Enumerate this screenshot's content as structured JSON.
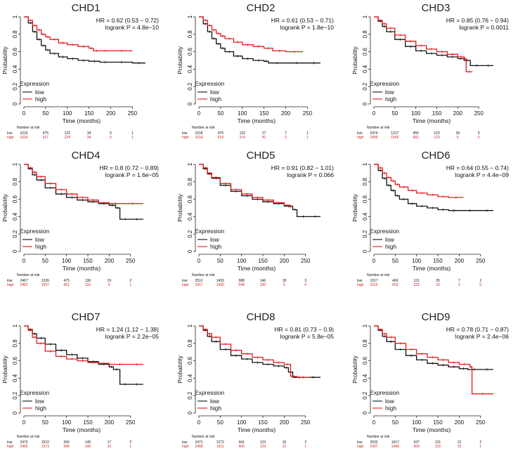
{
  "strings": {
    "xlabel": "Time (months)",
    "ylabel": "Probability",
    "legend_title": "Expression",
    "low": "low",
    "high": "high",
    "number_at_risk": "Number at risk"
  },
  "colors": {
    "low": "#111111",
    "high": "#e41a1c",
    "axis": "#222222"
  },
  "chart_data": [
    {
      "type": "line",
      "title": "CHD1",
      "hr": "HR = 0.62 (0.53 − 0.72)",
      "p": "logrank P = 4.8e−10",
      "xlabel": "Time (months)",
      "ylabel": "Probability",
      "xlim": [
        0,
        285
      ],
      "ylim": [
        0,
        1
      ],
      "xticks": [
        0,
        50,
        100,
        150,
        200,
        250
      ],
      "yticks": [
        0,
        0.2,
        0.4,
        0.6,
        0.8,
        1
      ],
      "risk_times": [
        0,
        50,
        100,
        150,
        200,
        250
      ],
      "risk_low": [
        "1016",
        "475",
        "122",
        "34",
        "5",
        "1"
      ],
      "risk_high": [
        "1016",
        "617",
        "224",
        "34",
        "5",
        "1"
      ],
      "series": [
        {
          "name": "low",
          "x": [
            0,
            10,
            20,
            30,
            40,
            50,
            60,
            80,
            100,
            125,
            150,
            175,
            200,
            250,
            280
          ],
          "y": [
            1,
            0.93,
            0.83,
            0.74,
            0.67,
            0.62,
            0.58,
            0.54,
            0.52,
            0.5,
            0.49,
            0.48,
            0.48,
            0.47,
            0.47
          ]
        },
        {
          "name": "high",
          "x": [
            0,
            10,
            20,
            30,
            40,
            50,
            60,
            80,
            100,
            125,
            150,
            160,
            175,
            200,
            250
          ],
          "y": [
            1,
            0.96,
            0.9,
            0.85,
            0.8,
            0.77,
            0.74,
            0.7,
            0.68,
            0.66,
            0.64,
            0.61,
            0.61,
            0.61,
            0.61
          ]
        }
      ]
    },
    {
      "type": "line",
      "title": "CHD2",
      "hr": "HR = 0.61 (0.53 − 0.71)",
      "p": "logrank P = 1.8e−10",
      "xlabel": "Time (months)",
      "ylabel": "Probability",
      "xlim": [
        0,
        285
      ],
      "ylim": [
        0,
        1
      ],
      "xticks": [
        0,
        50,
        100,
        150,
        200,
        250
      ],
      "yticks": [
        0,
        0.2,
        0.4,
        0.6,
        0.8,
        1
      ],
      "risk_times": [
        0,
        50,
        100,
        150,
        200,
        250
      ],
      "risk_low": [
        "1018",
        "476",
        "132",
        "27",
        "7",
        "1"
      ],
      "risk_high": [
        "1014",
        "614",
        "214",
        "41",
        "3",
        "1"
      ],
      "series": [
        {
          "name": "low",
          "x": [
            0,
            10,
            20,
            30,
            40,
            50,
            60,
            80,
            100,
            125,
            150,
            160,
            200,
            250,
            280
          ],
          "y": [
            1,
            0.92,
            0.83,
            0.75,
            0.69,
            0.64,
            0.6,
            0.55,
            0.52,
            0.5,
            0.49,
            0.47,
            0.47,
            0.47,
            0.47
          ]
        },
        {
          "name": "high",
          "x": [
            0,
            10,
            20,
            30,
            40,
            50,
            60,
            80,
            100,
            125,
            150,
            170,
            200,
            240
          ],
          "y": [
            1,
            0.96,
            0.9,
            0.85,
            0.81,
            0.78,
            0.75,
            0.71,
            0.68,
            0.66,
            0.64,
            0.61,
            0.6,
            0.6
          ]
        }
      ]
    },
    {
      "type": "line",
      "title": "CHD3",
      "hr": "HR = 0.85 (0.76 − 0.94)",
      "p": "logrank P = 0.0011",
      "xlabel": "Time (months)",
      "ylabel": "Probability",
      "xlim": [
        0,
        295
      ],
      "ylim": [
        0,
        1
      ],
      "xticks": [
        0,
        50,
        100,
        150,
        200,
        250
      ],
      "yticks": [
        0,
        0.2,
        0.4,
        0.6,
        0.8,
        1
      ],
      "risk_times": [
        0,
        50,
        100,
        150,
        200,
        250
      ],
      "risk_low": [
        "2474",
        "1317",
        "455",
        "123",
        "18",
        "3"
      ],
      "risk_high": [
        "2456",
        "1566",
        "681",
        "123",
        "6",
        "0"
      ],
      "series": [
        {
          "name": "low",
          "x": [
            0,
            10,
            20,
            30,
            50,
            75,
            100,
            125,
            150,
            175,
            200,
            215,
            230,
            260,
            285
          ],
          "y": [
            1,
            0.95,
            0.89,
            0.83,
            0.74,
            0.66,
            0.61,
            0.58,
            0.56,
            0.54,
            0.52,
            0.5,
            0.44,
            0.44,
            0.44
          ]
        },
        {
          "name": "high",
          "x": [
            0,
            10,
            20,
            30,
            50,
            75,
            100,
            125,
            150,
            175,
            200,
            215,
            220,
            235
          ],
          "y": [
            1,
            0.96,
            0.92,
            0.87,
            0.79,
            0.72,
            0.67,
            0.63,
            0.6,
            0.57,
            0.54,
            0.52,
            0.37,
            0.37
          ]
        }
      ]
    },
    {
      "type": "line",
      "title": "CHD4",
      "hr": "HR = 0.8 (0.72 − 0.89)",
      "p": "logrank P = 1.6e−05",
      "xlabel": "Time (months)",
      "ylabel": "Probability",
      "xlim": [
        0,
        290
      ],
      "ylim": [
        0,
        1
      ],
      "xticks": [
        0,
        50,
        100,
        150,
        200,
        250
      ],
      "yticks": [
        0,
        0.2,
        0.4,
        0.6,
        0.8,
        1
      ],
      "risk_times": [
        0,
        50,
        100,
        150,
        200,
        250
      ],
      "risk_low": [
        "2467",
        "1326",
        "475",
        "130",
        "19",
        "2"
      ],
      "risk_high": [
        "2462",
        "1557",
        "661",
        "116",
        "6",
        "1"
      ],
      "series": [
        {
          "name": "low",
          "x": [
            0,
            10,
            20,
            30,
            50,
            75,
            100,
            125,
            150,
            175,
            200,
            215,
            225,
            250,
            280
          ],
          "y": [
            1,
            0.95,
            0.88,
            0.82,
            0.73,
            0.66,
            0.62,
            0.59,
            0.57,
            0.55,
            0.53,
            0.5,
            0.37,
            0.37,
            0.37
          ]
        },
        {
          "name": "high",
          "x": [
            0,
            10,
            20,
            30,
            50,
            75,
            100,
            125,
            150,
            175,
            200,
            230,
            280
          ],
          "y": [
            1,
            0.96,
            0.91,
            0.86,
            0.78,
            0.71,
            0.66,
            0.62,
            0.59,
            0.56,
            0.55,
            0.55,
            0.55
          ]
        }
      ]
    },
    {
      "type": "line",
      "title": "CHD5",
      "hr": "HR = 0.91 (0.82 − 1.01)",
      "p": "logrank P = 0.066",
      "xlabel": "Time (months)",
      "ylabel": "Probability",
      "xlim": [
        0,
        290
      ],
      "ylim": [
        0,
        1
      ],
      "xticks": [
        0,
        50,
        100,
        150,
        200,
        250
      ],
      "yticks": [
        0,
        0.2,
        0.4,
        0.6,
        0.8,
        1
      ],
      "risk_times": [
        0,
        50,
        100,
        150,
        200,
        250
      ],
      "risk_low": [
        "2512",
        "1453",
        "588",
        "146",
        "18",
        "3"
      ],
      "risk_high": [
        "2417",
        "1430",
        "548",
        "100",
        "6",
        "0"
      ],
      "series": [
        {
          "name": "low",
          "x": [
            0,
            10,
            20,
            30,
            50,
            75,
            100,
            125,
            150,
            175,
            200,
            220,
            230,
            260,
            285
          ],
          "y": [
            1,
            0.95,
            0.89,
            0.84,
            0.76,
            0.69,
            0.64,
            0.6,
            0.57,
            0.55,
            0.52,
            0.48,
            0.4,
            0.4,
            0.4
          ]
        },
        {
          "name": "high",
          "x": [
            0,
            10,
            20,
            30,
            50,
            75,
            100,
            125,
            150,
            175,
            200,
            215
          ],
          "y": [
            1,
            0.96,
            0.9,
            0.85,
            0.78,
            0.71,
            0.66,
            0.62,
            0.59,
            0.56,
            0.53,
            0.5
          ]
        }
      ]
    },
    {
      "type": "line",
      "title": "CHD6",
      "hr": "HR = 0.64 (0.55 − 0.74)",
      "p": "logrank P = 4.4e−09",
      "xlabel": "Time (months)",
      "ylabel": "Probability",
      "xlim": [
        0,
        290
      ],
      "ylim": [
        0,
        1
      ],
      "xticks": [
        0,
        50,
        100,
        150,
        200,
        250
      ],
      "yticks": [
        0,
        0.2,
        0.4,
        0.6,
        0.8,
        1
      ],
      "risk_times": [
        0,
        50,
        100,
        150,
        200,
        250
      ],
      "risk_low": [
        "1017",
        "469",
        "121",
        "35",
        "7",
        "2"
      ],
      "risk_high": [
        "1015",
        "603",
        "225",
        "33",
        "3",
        "0"
      ],
      "series": [
        {
          "name": "low",
          "x": [
            0,
            10,
            20,
            30,
            40,
            50,
            60,
            80,
            100,
            125,
            150,
            175,
            200,
            250,
            280
          ],
          "y": [
            1,
            0.93,
            0.84,
            0.76,
            0.7,
            0.64,
            0.6,
            0.55,
            0.52,
            0.5,
            0.48,
            0.47,
            0.47,
            0.47,
            0.47
          ]
        },
        {
          "name": "high",
          "x": [
            0,
            10,
            20,
            30,
            40,
            50,
            60,
            80,
            100,
            125,
            150,
            175,
            210
          ],
          "y": [
            1,
            0.96,
            0.9,
            0.85,
            0.81,
            0.77,
            0.74,
            0.7,
            0.67,
            0.65,
            0.63,
            0.62,
            0.62
          ]
        }
      ]
    },
    {
      "type": "line",
      "title": "CHD7",
      "hr": "HR = 1.24 (1.12 − 1.38)",
      "p": "logrank P = 2.2e−05",
      "xlabel": "Time (months)",
      "ylabel": "Probability",
      "xlim": [
        0,
        290
      ],
      "ylim": [
        0,
        1
      ],
      "xticks": [
        0,
        50,
        100,
        150,
        200,
        250
      ],
      "yticks": [
        0,
        0.2,
        0.4,
        0.6,
        0.8,
        1
      ],
      "risk_times": [
        0,
        50,
        100,
        150,
        200,
        250
      ],
      "risk_low": [
        "2473",
        "1510",
        "590",
        "146",
        "17",
        "2"
      ],
      "risk_high": [
        "2456",
        "1373",
        "546",
        "100",
        "10",
        "1"
      ],
      "series": [
        {
          "name": "low",
          "x": [
            0,
            10,
            20,
            30,
            50,
            75,
            100,
            125,
            150,
            175,
            200,
            210,
            225,
            250,
            280
          ],
          "y": [
            1,
            0.96,
            0.91,
            0.86,
            0.79,
            0.72,
            0.67,
            0.63,
            0.59,
            0.56,
            0.53,
            0.5,
            0.33,
            0.33,
            0.33
          ]
        },
        {
          "name": "high",
          "x": [
            0,
            10,
            20,
            30,
            50,
            75,
            100,
            125,
            150,
            175,
            200,
            250,
            280
          ],
          "y": [
            1,
            0.95,
            0.87,
            0.8,
            0.71,
            0.65,
            0.62,
            0.6,
            0.58,
            0.57,
            0.56,
            0.56,
            0.56
          ]
        }
      ]
    },
    {
      "type": "line",
      "title": "CHD8",
      "hr": "HR = 0.81 (0.73 − 0.9)",
      "p": "logrank P = 5.8e−05",
      "xlabel": "Time (months)",
      "ylabel": "Probability",
      "xlim": [
        0,
        290
      ],
      "ylim": [
        0,
        1
      ],
      "xticks": [
        0,
        50,
        100,
        150,
        200,
        250
      ],
      "yticks": [
        0,
        0.2,
        0.4,
        0.6,
        0.8,
        1
      ],
      "risk_times": [
        0,
        50,
        100,
        150,
        200,
        250
      ],
      "risk_low": [
        "2471",
        "1272",
        "441",
        "123",
        "16",
        "2"
      ],
      "risk_high": [
        "2458",
        "1611",
        "695",
        "123",
        "11",
        "1"
      ],
      "series": [
        {
          "name": "low",
          "x": [
            0,
            10,
            20,
            30,
            50,
            75,
            100,
            125,
            150,
            175,
            200,
            210,
            220,
            250,
            285
          ],
          "y": [
            1,
            0.95,
            0.88,
            0.82,
            0.73,
            0.66,
            0.62,
            0.58,
            0.56,
            0.54,
            0.52,
            0.47,
            0.41,
            0.41,
            0.41
          ]
        },
        {
          "name": "high",
          "x": [
            0,
            10,
            20,
            30,
            50,
            75,
            100,
            125,
            150,
            175,
            200,
            215,
            230,
            260
          ],
          "y": [
            1,
            0.96,
            0.91,
            0.87,
            0.79,
            0.72,
            0.68,
            0.64,
            0.61,
            0.58,
            0.56,
            0.42,
            0.41,
            0.41
          ]
        }
      ]
    },
    {
      "type": "line",
      "title": "CHD9",
      "hr": "HR = 0.78 (0.71 − 0.87)",
      "p": "logrank P = 2.4e−06",
      "xlabel": "Time (months)",
      "ylabel": "Probability",
      "xlim": [
        0,
        290
      ],
      "ylim": [
        0,
        1
      ],
      "xticks": [
        0,
        50,
        100,
        150,
        200,
        250
      ],
      "yticks": [
        0,
        0.2,
        0.4,
        0.6,
        0.8,
        1
      ],
      "risk_times": [
        0,
        50,
        100,
        150,
        200,
        250
      ],
      "risk_low": [
        "2502",
        "1417",
        "537",
        "131",
        "12",
        "2"
      ],
      "risk_high": [
        "2427",
        "1456",
        "609",
        "115",
        "15",
        "1"
      ],
      "series": [
        {
          "name": "low",
          "x": [
            0,
            10,
            20,
            30,
            50,
            75,
            100,
            125,
            150,
            175,
            200,
            220,
            250,
            280
          ],
          "y": [
            1,
            0.95,
            0.88,
            0.82,
            0.73,
            0.66,
            0.61,
            0.57,
            0.55,
            0.53,
            0.51,
            0.5,
            0.5,
            0.5
          ]
        },
        {
          "name": "high",
          "x": [
            0,
            10,
            20,
            30,
            50,
            75,
            100,
            125,
            150,
            175,
            200,
            225,
            230,
            280
          ],
          "y": [
            1,
            0.96,
            0.91,
            0.87,
            0.8,
            0.73,
            0.68,
            0.64,
            0.61,
            0.58,
            0.56,
            0.53,
            0.22,
            0.22
          ]
        }
      ]
    }
  ]
}
